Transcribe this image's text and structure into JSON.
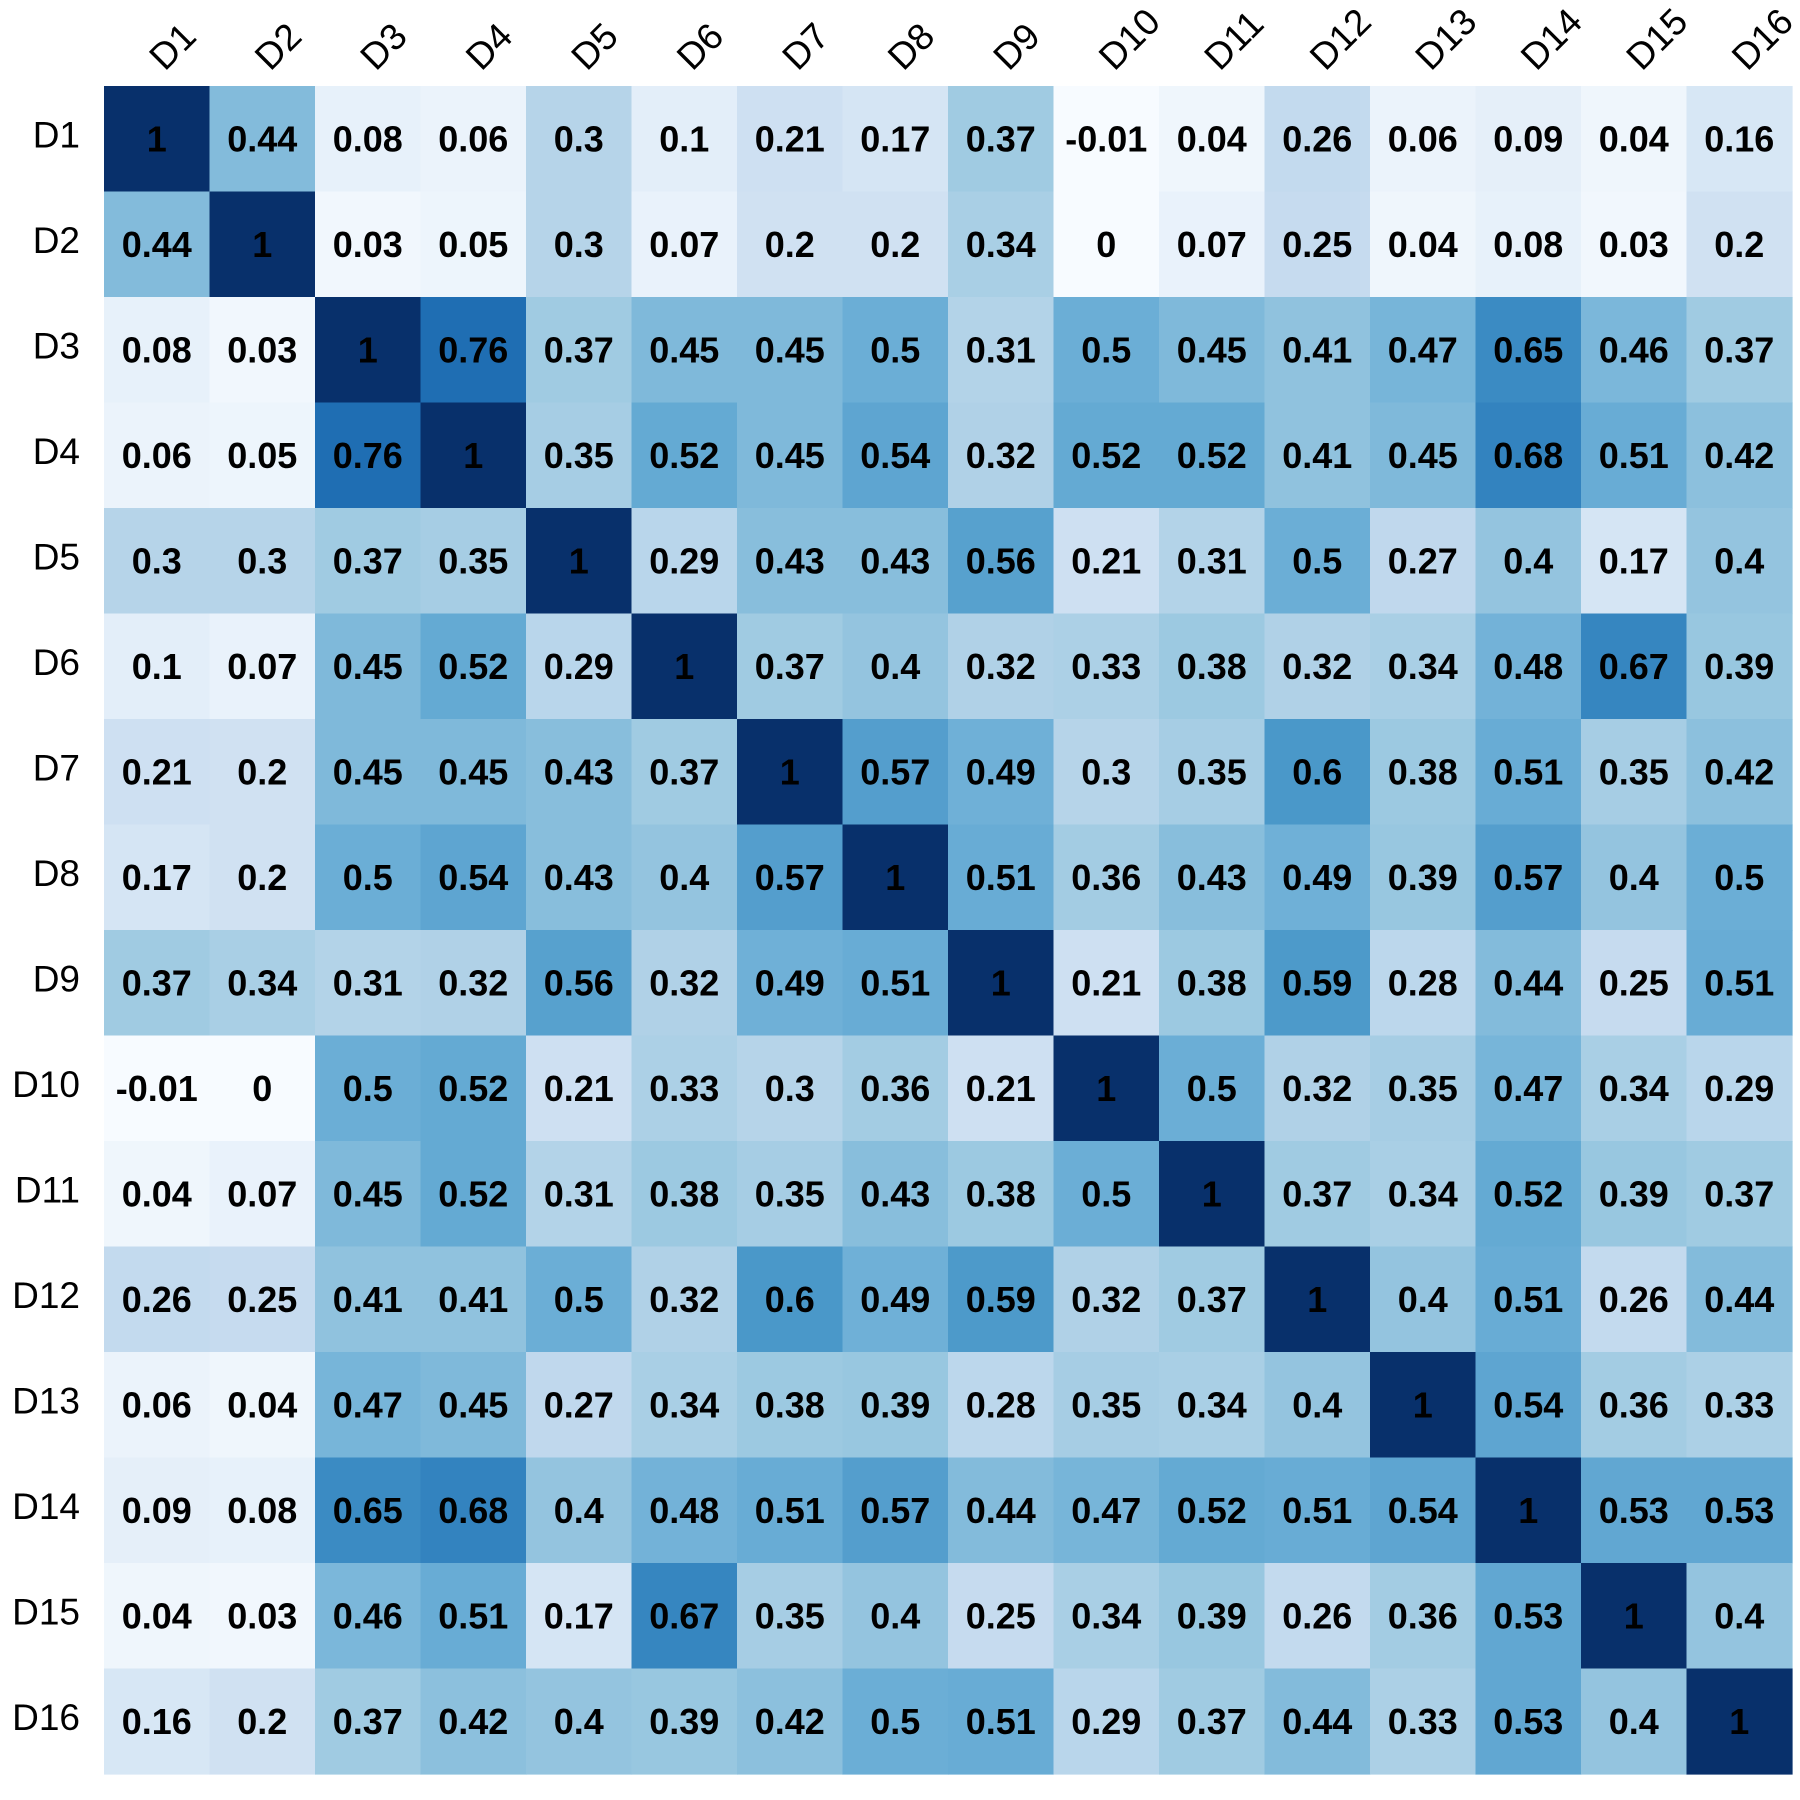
{
  "chart_data": {
    "type": "heatmap",
    "title": "",
    "xlabel": "",
    "ylabel": "",
    "x_labels": [
      "D1",
      "D2",
      "D3",
      "D4",
      "D5",
      "D6",
      "D7",
      "D8",
      "D9",
      "D10",
      "D11",
      "D12",
      "D13",
      "D14",
      "D15",
      "D16"
    ],
    "y_labels": [
      "D1",
      "D2",
      "D3",
      "D4",
      "D5",
      "D6",
      "D7",
      "D8",
      "D9",
      "D10",
      "D11",
      "D12",
      "D13",
      "D14",
      "D15",
      "D16"
    ],
    "x_labels_position": "top",
    "x_labels_rotation": "45deg",
    "color_scale": {
      "name": "Blues",
      "min": 0,
      "max": 1,
      "low_color": "#f7fbff",
      "high_color": "#08306b"
    },
    "grid": false,
    "legend": "none",
    "values": [
      [
        1,
        0.44,
        0.08,
        0.06,
        0.3,
        0.1,
        0.21,
        0.17,
        0.37,
        -0.01,
        0.04,
        0.26,
        0.06,
        0.09,
        0.04,
        0.16
      ],
      [
        0.44,
        1,
        0.03,
        0.05,
        0.3,
        0.07,
        0.2,
        0.2,
        0.34,
        0,
        0.07,
        0.25,
        0.04,
        0.08,
        0.03,
        0.2
      ],
      [
        0.08,
        0.03,
        1,
        0.76,
        0.37,
        0.45,
        0.45,
        0.5,
        0.31,
        0.5,
        0.45,
        0.41,
        0.47,
        0.65,
        0.46,
        0.37
      ],
      [
        0.06,
        0.05,
        0.76,
        1,
        0.35,
        0.52,
        0.45,
        0.54,
        0.32,
        0.52,
        0.52,
        0.41,
        0.45,
        0.68,
        0.51,
        0.42
      ],
      [
        0.3,
        0.3,
        0.37,
        0.35,
        1,
        0.29,
        0.43,
        0.43,
        0.56,
        0.21,
        0.31,
        0.5,
        0.27,
        0.4,
        0.17,
        0.4
      ],
      [
        0.1,
        0.07,
        0.45,
        0.52,
        0.29,
        1,
        0.37,
        0.4,
        0.32,
        0.33,
        0.38,
        0.32,
        0.34,
        0.48,
        0.67,
        0.39
      ],
      [
        0.21,
        0.2,
        0.45,
        0.45,
        0.43,
        0.37,
        1,
        0.57,
        0.49,
        0.3,
        0.35,
        0.6,
        0.38,
        0.51,
        0.35,
        0.42
      ],
      [
        0.17,
        0.2,
        0.5,
        0.54,
        0.43,
        0.4,
        0.57,
        1,
        0.51,
        0.36,
        0.43,
        0.49,
        0.39,
        0.57,
        0.4,
        0.5
      ],
      [
        0.37,
        0.34,
        0.31,
        0.32,
        0.56,
        0.32,
        0.49,
        0.51,
        1,
        0.21,
        0.38,
        0.59,
        0.28,
        0.44,
        0.25,
        0.51
      ],
      [
        -0.01,
        0,
        0.5,
        0.52,
        0.21,
        0.33,
        0.3,
        0.36,
        0.21,
        1,
        0.5,
        0.32,
        0.35,
        0.47,
        0.34,
        0.29
      ],
      [
        0.04,
        0.07,
        0.45,
        0.52,
        0.31,
        0.38,
        0.35,
        0.43,
        0.38,
        0.5,
        1,
        0.37,
        0.34,
        0.52,
        0.39,
        0.37
      ],
      [
        0.26,
        0.25,
        0.41,
        0.41,
        0.5,
        0.32,
        0.6,
        0.49,
        0.59,
        0.32,
        0.37,
        1,
        0.4,
        0.51,
        0.26,
        0.44
      ],
      [
        0.06,
        0.04,
        0.47,
        0.45,
        0.27,
        0.34,
        0.38,
        0.39,
        0.28,
        0.35,
        0.34,
        0.4,
        1,
        0.54,
        0.36,
        0.33
      ],
      [
        0.09,
        0.08,
        0.65,
        0.68,
        0.4,
        0.48,
        0.51,
        0.57,
        0.44,
        0.47,
        0.52,
        0.51,
        0.54,
        1,
        0.53,
        0.53
      ],
      [
        0.04,
        0.03,
        0.46,
        0.51,
        0.17,
        0.67,
        0.35,
        0.4,
        0.25,
        0.34,
        0.39,
        0.26,
        0.36,
        0.53,
        1,
        0.4
      ],
      [
        0.16,
        0.2,
        0.37,
        0.42,
        0.4,
        0.39,
        0.42,
        0.5,
        0.51,
        0.29,
        0.37,
        0.44,
        0.33,
        0.53,
        0.4,
        1
      ]
    ]
  }
}
